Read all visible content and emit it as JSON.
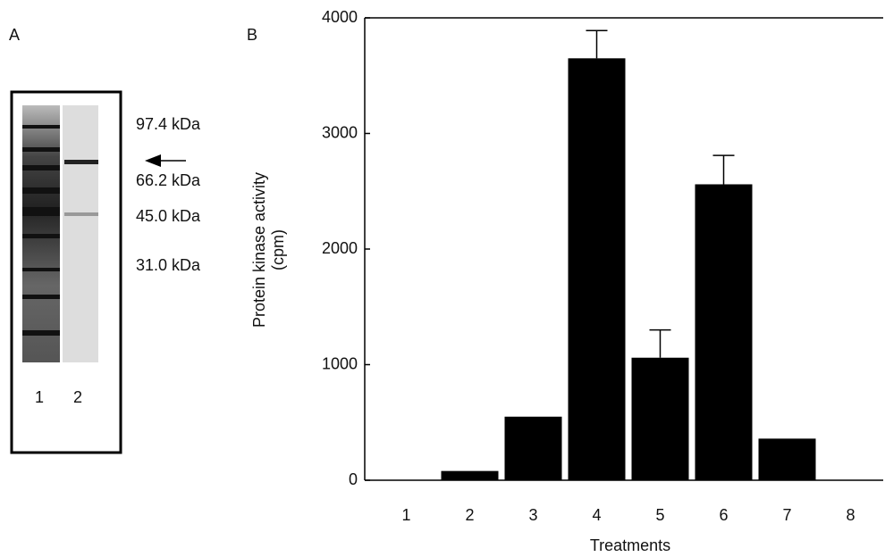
{
  "panel_a": {
    "label": "A",
    "markers": [
      "97.4 kDa",
      "66.2 kDa",
      "45.0 kDa",
      "31.0 kDa"
    ],
    "lanes": [
      "1",
      "2"
    ]
  },
  "chart_data": {
    "type": "bar",
    "panel_label": "B",
    "x_label": "Treatments",
    "y_label": [
      "Protein kinase activity",
      "(cpm)"
    ],
    "categories": [
      "1",
      "2",
      "3",
      "4",
      "5",
      "6",
      "7",
      "8"
    ],
    "values": [
      0,
      80,
      550,
      3650,
      1060,
      2560,
      360,
      0
    ],
    "errors": [
      null,
      null,
      null,
      240,
      240,
      250,
      null,
      null
    ],
    "color": "#000000",
    "ylim": [
      0,
      4000
    ],
    "yticks": [
      0,
      1000,
      2000,
      3000,
      4000
    ]
  }
}
